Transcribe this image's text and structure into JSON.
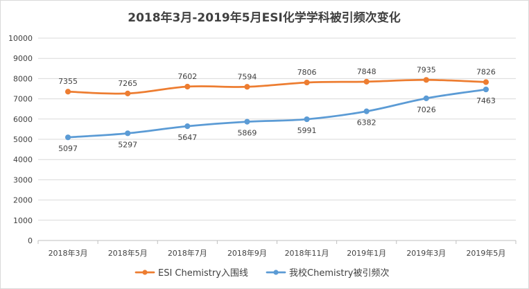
{
  "chart_data": {
    "type": "line",
    "title": "2018年3月-2019年5月ESI化学学科被引频次变化",
    "xlabel": "",
    "ylabel": "",
    "categories": [
      "2018年3月",
      "2018年5月",
      "2018年7月",
      "2018年9月",
      "2018年11月",
      "2019年1月",
      "2019年3月",
      "2019年5月"
    ],
    "ylim": [
      0,
      10000
    ],
    "yticks": [
      "0",
      "1000",
      "2000",
      "3000",
      "4000",
      "5000",
      "6000",
      "7000",
      "8000",
      "9000",
      "10000"
    ],
    "grid": true,
    "legend_position": "bottom",
    "series": [
      {
        "name": "ESI Chemistry入围线",
        "color": "#ED7D31",
        "label_position": "above",
        "values": [
          7355,
          7265,
          7602,
          7594,
          7806,
          7848,
          7935,
          7826
        ],
        "labels": [
          "7355",
          "7265",
          "7602",
          "7594",
          "7806",
          "7848",
          "7935",
          "7826"
        ]
      },
      {
        "name": "我校Chemistry被引频次",
        "color": "#5B9BD5",
        "label_position": "below",
        "values": [
          5097,
          5297,
          5647,
          5869,
          5991,
          6382,
          7026,
          7463
        ],
        "labels": [
          "5097",
          "5297",
          "5647",
          "5869",
          "5991",
          "6382",
          "7026",
          "7463"
        ]
      }
    ]
  }
}
